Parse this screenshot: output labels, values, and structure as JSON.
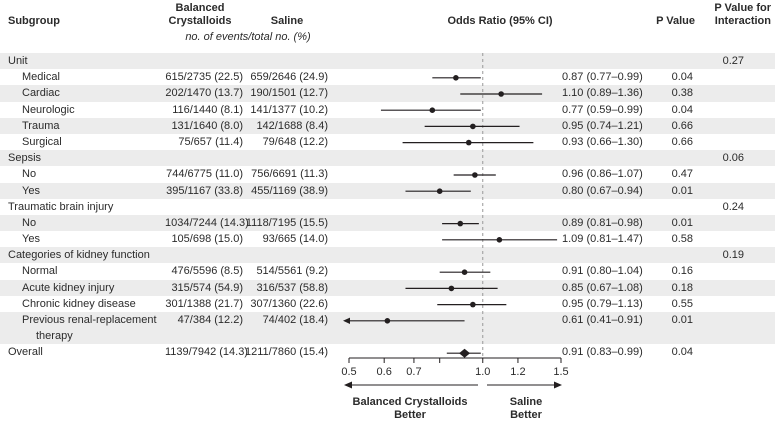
{
  "header": {
    "subgroup": "Subgroup",
    "balanced_line1": "Balanced",
    "balanced_line2": "Crystalloids",
    "saline": "Saline",
    "events_note": "no. of events/total no. (%)",
    "odds_ratio": "Odds Ratio (95% CI)",
    "p_value": "P Value",
    "p_interaction_line1": "P Value for",
    "p_interaction_line2": "Interaction"
  },
  "colors": {
    "row_shade": "#ececec",
    "text": "#2b2b2b",
    "marker": "#231f20",
    "reference_line": "#999999"
  },
  "chart_data": {
    "type": "forest",
    "x_axis": {
      "scale": "log",
      "min": 0.5,
      "max": 1.5,
      "reference": 1.0,
      "ticks": [
        {
          "v": 0.5,
          "label": "0.5"
        },
        {
          "v": 0.6,
          "label": "0.6"
        },
        {
          "v": 0.7,
          "label": "0.7"
        },
        {
          "v": 0.8,
          "label": ""
        },
        {
          "v": 1.0,
          "label": "1.0"
        },
        {
          "v": 1.2,
          "label": "1.2"
        },
        {
          "v": 1.5,
          "label": "1.5"
        }
      ]
    },
    "footer": {
      "left_label_line1": "Balanced Crystalloids",
      "left_label_line2": "Better",
      "right_label_line1": "Saline",
      "right_label_line2": "Better"
    },
    "rows": [
      {
        "type": "sec",
        "label": "Unit",
        "shaded": true,
        "p_interaction": "0.27"
      },
      {
        "type": "item",
        "label": "Medical",
        "shaded": false,
        "balanced": "615/2735 (22.5)",
        "saline": "659/2646 (24.9)",
        "or": 0.87,
        "ci_low": 0.77,
        "ci_high": 0.99,
        "or_text": "0.87 (0.77–0.99)",
        "p": "0.04"
      },
      {
        "type": "item",
        "label": "Cardiac",
        "shaded": true,
        "balanced": "202/1470 (13.7)",
        "saline": "190/1501 (12.7)",
        "or": 1.1,
        "ci_low": 0.89,
        "ci_high": 1.36,
        "or_text": "1.10 (0.89–1.36)",
        "p": "0.38"
      },
      {
        "type": "item",
        "label": "Neurologic",
        "shaded": false,
        "balanced": "116/1440 (8.1)",
        "saline": "141/1377 (10.2)",
        "or": 0.77,
        "ci_low": 0.59,
        "ci_high": 0.99,
        "or_text": "0.77 (0.59–0.99)",
        "p": "0.04"
      },
      {
        "type": "item",
        "label": "Trauma",
        "shaded": true,
        "balanced": "131/1640 (8.0)",
        "saline": "142/1688 (8.4)",
        "or": 0.95,
        "ci_low": 0.74,
        "ci_high": 1.21,
        "or_text": "0.95 (0.74–1.21)",
        "p": "0.66"
      },
      {
        "type": "item",
        "label": "Surgical",
        "shaded": false,
        "balanced": "75/657 (11.4)",
        "saline": "79/648 (12.2)",
        "or": 0.93,
        "ci_low": 0.66,
        "ci_high": 1.3,
        "or_text": "0.93 (0.66–1.30)",
        "p": "0.66"
      },
      {
        "type": "sec",
        "label": "Sepsis",
        "shaded": true,
        "p_interaction": "0.06"
      },
      {
        "type": "item",
        "label": "No",
        "shaded": false,
        "balanced": "744/6775 (11.0)",
        "saline": "756/6691 (11.3)",
        "or": 0.96,
        "ci_low": 0.86,
        "ci_high": 1.07,
        "or_text": "0.96 (0.86–1.07)",
        "p": "0.47"
      },
      {
        "type": "item",
        "label": "Yes",
        "shaded": true,
        "balanced": "395/1167 (33.8)",
        "saline": "455/1169 (38.9)",
        "or": 0.8,
        "ci_low": 0.67,
        "ci_high": 0.94,
        "or_text": "0.80 (0.67–0.94)",
        "p": "0.01"
      },
      {
        "type": "sec",
        "label": "Traumatic brain injury",
        "shaded": false,
        "p_interaction": "0.24"
      },
      {
        "type": "item",
        "label": "No",
        "shaded": true,
        "balanced": "1034/7244 (14.3)",
        "saline": "1118/7195 (15.5)",
        "or": 0.89,
        "ci_low": 0.81,
        "ci_high": 0.98,
        "or_text": "0.89 (0.81–0.98)",
        "p": "0.01"
      },
      {
        "type": "item",
        "label": "Yes",
        "shaded": false,
        "balanced": "105/698 (15.0)",
        "saline": "93/665 (14.0)",
        "or": 1.09,
        "ci_low": 0.81,
        "ci_high": 1.47,
        "or_text": "1.09 (0.81–1.47)",
        "p": "0.58"
      },
      {
        "type": "sec",
        "label": "Categories of kidney function",
        "shaded": true,
        "p_interaction": "0.19"
      },
      {
        "type": "item",
        "label": "Normal",
        "shaded": false,
        "balanced": "476/5596 (8.5)",
        "saline": "514/5561 (9.2)",
        "or": 0.91,
        "ci_low": 0.8,
        "ci_high": 1.04,
        "or_text": "0.91 (0.80–1.04)",
        "p": "0.16"
      },
      {
        "type": "item",
        "label": "Acute kidney injury",
        "shaded": true,
        "balanced": "315/574 (54.9)",
        "saline": "316/537 (58.8)",
        "or": 0.85,
        "ci_low": 0.67,
        "ci_high": 1.08,
        "or_text": "0.85 (0.67–1.08)",
        "p": "0.18"
      },
      {
        "type": "item",
        "label": "Chronic kidney disease",
        "shaded": false,
        "balanced": "301/1388 (21.7)",
        "saline": "307/1360 (22.6)",
        "or": 0.95,
        "ci_low": 0.79,
        "ci_high": 1.13,
        "or_text": "0.95 (0.79–1.13)",
        "p": "0.55"
      },
      {
        "type": "item",
        "label": "Previous renal-replacement",
        "shaded": true,
        "balanced": "47/384 (12.2)",
        "saline": "74/402 (18.4)",
        "or": 0.61,
        "ci_low": 0.41,
        "ci_high": 0.91,
        "or_text": "0.61 (0.41–0.91)",
        "p": "0.01",
        "clip_low": true
      },
      {
        "type": "cont",
        "label": "therapy",
        "shaded": true
      },
      {
        "type": "overall",
        "label": "Overall",
        "shaded": false,
        "balanced": "1139/7942 (14.3)",
        "saline": "1211/7860 (15.4)",
        "or": 0.91,
        "ci_low": 0.83,
        "ci_high": 0.99,
        "or_text": "0.91 (0.83–0.99)",
        "p": "0.04",
        "marker": "diamond"
      }
    ]
  }
}
